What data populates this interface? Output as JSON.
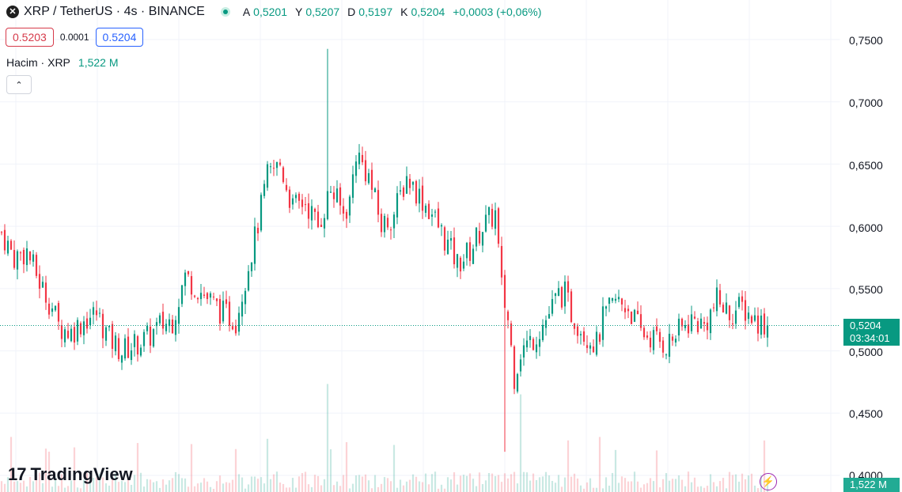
{
  "header": {
    "symbol_icon": "xrp-icon",
    "title": "XRP / TetherUS · 4s · BINANCE",
    "status": "market-open-dot",
    "ohlc": [
      {
        "key": "A",
        "value": "0,5201"
      },
      {
        "key": "Y",
        "value": "0,5207"
      },
      {
        "key": "D",
        "value": "0,5197"
      },
      {
        "key": "K",
        "value": "0,5204"
      }
    ],
    "change": "+0,0003 (+0,06%)"
  },
  "trade": {
    "sell_price": "0.5203",
    "spread": "0.0001",
    "buy_price": "0.5204"
  },
  "volume_legend": {
    "label": "Hacim · XRP",
    "value": "1,522 M"
  },
  "price_axis": {
    "ticks": [
      "0,7500",
      "0,7000",
      "0,6500",
      "0,6000",
      "0,5500",
      "0,5000",
      "0,4500",
      "0,4000"
    ],
    "last_price": "0,5204",
    "countdown": "03:34:01",
    "volume_tag": "1,522 M"
  },
  "branding": {
    "logo_text": "TradingView"
  },
  "colors": {
    "up": "#089981",
    "down": "#f23645",
    "accent": "#2962ff"
  },
  "chart_data": {
    "type": "candlestick",
    "ylim": [
      0.4,
      0.76
    ],
    "grid": true,
    "last_price": 0.5204,
    "x_count": 175,
    "close_path": [
      [
        0,
        0.595
      ],
      [
        4,
        0.575
      ],
      [
        8,
        0.58
      ],
      [
        12,
        0.555
      ],
      [
        16,
        0.535
      ],
      [
        18,
        0.52
      ],
      [
        22,
        0.515
      ],
      [
        26,
        0.525
      ],
      [
        30,
        0.53
      ],
      [
        34,
        0.51
      ],
      [
        38,
        0.5
      ],
      [
        42,
        0.505
      ],
      [
        46,
        0.51
      ],
      [
        50,
        0.52
      ],
      [
        54,
        0.525
      ],
      [
        58,
        0.56
      ],
      [
        62,
        0.55
      ],
      [
        66,
        0.54
      ],
      [
        70,
        0.53
      ],
      [
        74,
        0.525
      ],
      [
        78,
        0.57
      ],
      [
        80,
        0.59
      ],
      [
        84,
        0.64
      ],
      [
        88,
        0.65
      ],
      [
        92,
        0.615
      ],
      [
        96,
        0.62
      ],
      [
        100,
        0.6
      ],
      [
        104,
        0.63
      ],
      [
        108,
        0.61
      ],
      [
        110,
        0.62
      ],
      [
        112,
        0.66
      ],
      [
        116,
        0.64
      ],
      [
        120,
        0.6
      ],
      [
        124,
        0.61
      ],
      [
        128,
        0.64
      ],
      [
        132,
        0.625
      ],
      [
        136,
        0.61
      ],
      [
        140,
        0.59
      ],
      [
        144,
        0.57
      ],
      [
        148,
        0.58
      ],
      [
        152,
        0.6
      ],
      [
        156,
        0.61
      ],
      [
        158,
        0.55
      ],
      [
        160,
        0.525
      ],
      [
        162,
        0.48
      ],
      [
        164,
        0.5
      ],
      [
        168,
        0.51
      ],
      [
        172,
        0.525
      ],
      [
        176,
        0.545
      ],
      [
        178,
        0.545
      ],
      [
        180,
        0.53
      ],
      [
        184,
        0.515
      ],
      [
        188,
        0.505
      ],
      [
        190,
        0.525
      ],
      [
        194,
        0.54
      ],
      [
        198,
        0.535
      ],
      [
        202,
        0.515
      ],
      [
        206,
        0.51
      ],
      [
        210,
        0.505
      ],
      [
        214,
        0.515
      ],
      [
        218,
        0.525
      ],
      [
        222,
        0.52
      ],
      [
        226,
        0.54
      ],
      [
        230,
        0.53
      ],
      [
        234,
        0.535
      ],
      [
        238,
        0.525
      ],
      [
        242,
        0.5204
      ]
    ],
    "spikes": [
      {
        "x": 103,
        "high": 0.7425
      },
      {
        "x": 159,
        "low": 0.419
      }
    ]
  }
}
